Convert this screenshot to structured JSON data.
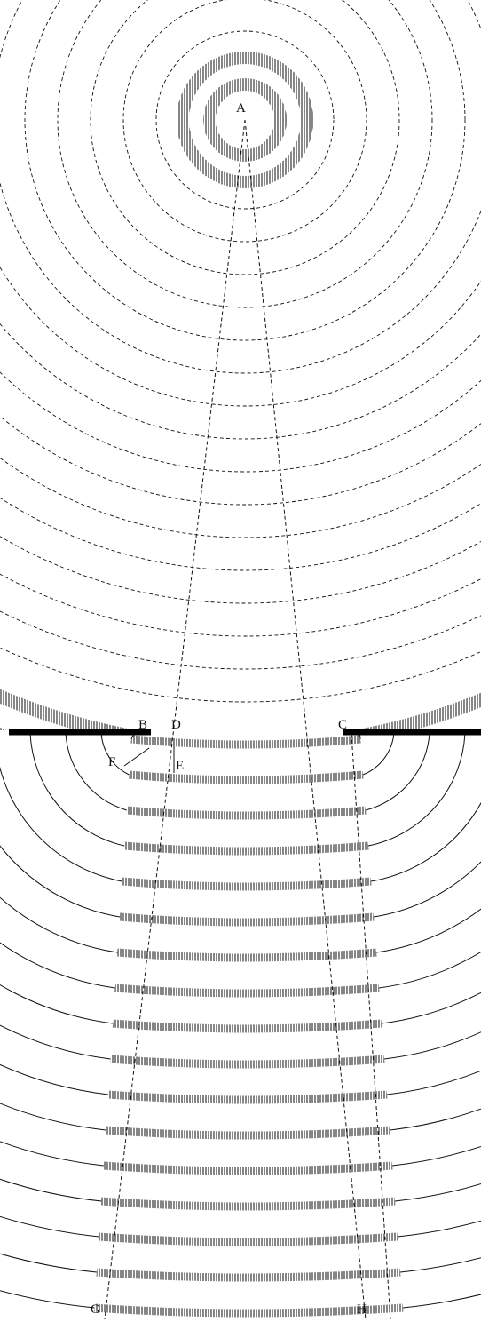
{
  "diagram": {
    "labels": {
      "A": "A",
      "B": "B",
      "C": "C",
      "D": "D",
      "E": "E",
      "F": "F",
      "G": "G",
      "H": "H"
    },
    "colors": {
      "ink": "#111111",
      "hatch": "#555555",
      "paper": "#ffffff"
    }
  }
}
